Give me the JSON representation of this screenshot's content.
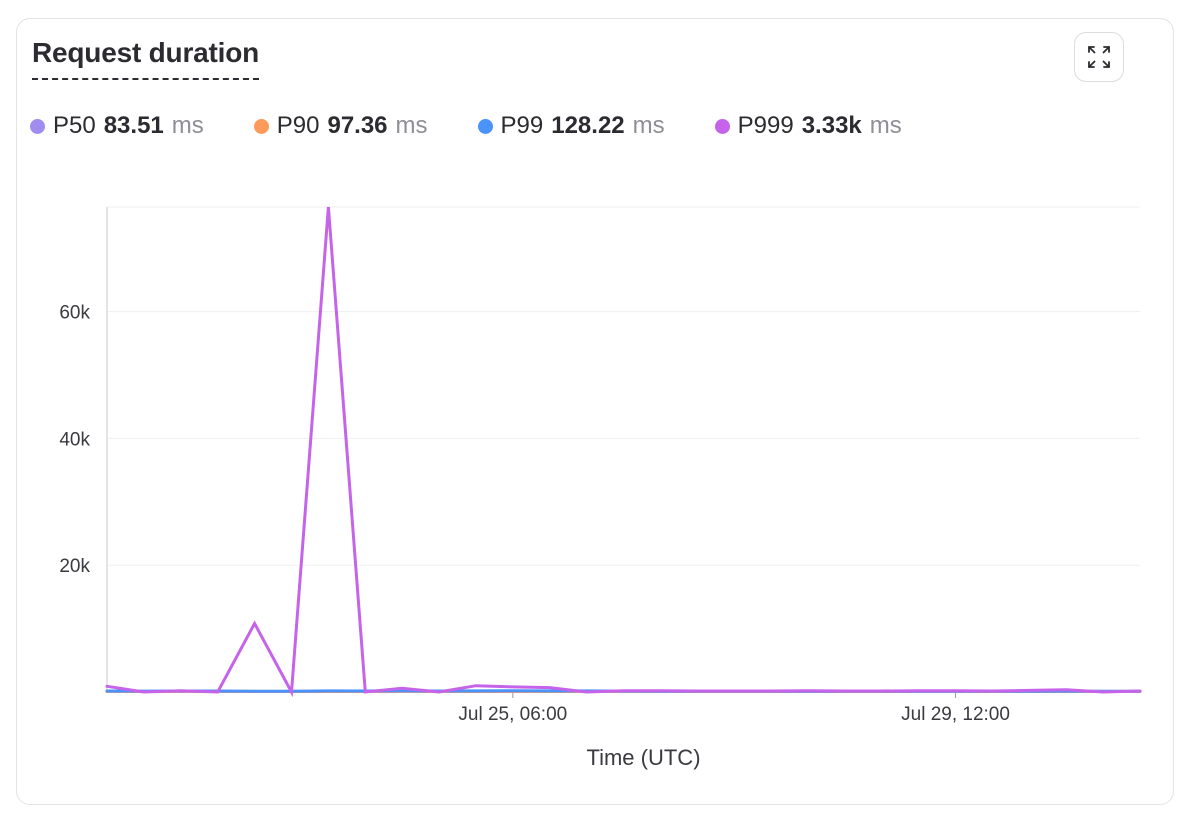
{
  "title": "Request duration",
  "expand_icon": "expand-icon",
  "legend": [
    {
      "name": "P50",
      "value": "83.51",
      "unit": "ms",
      "color": "#a18cf0"
    },
    {
      "name": "P90",
      "value": "97.36",
      "unit": "ms",
      "color": "#fb9a5a"
    },
    {
      "name": "P99",
      "value": "128.22",
      "unit": "ms",
      "color": "#4b93f8"
    },
    {
      "name": "P999",
      "value": "3.33k",
      "unit": "ms",
      "color": "#c564ea"
    }
  ],
  "chart_data": {
    "type": "line",
    "xlabel": "Time (UTC)",
    "ylabel": "",
    "ylim": [
      0,
      76500
    ],
    "yticks": [
      20000,
      40000,
      60000
    ],
    "ytick_labels": [
      "20k",
      "40k",
      "60k"
    ],
    "x": [
      0,
      1,
      2,
      3,
      4,
      5,
      6,
      7,
      8,
      9,
      10,
      11,
      12,
      13,
      14,
      15,
      16,
      17,
      18,
      19,
      20,
      21,
      22,
      23,
      24,
      25,
      26,
      27,
      28
    ],
    "xticks": [
      {
        "x": 11,
        "label": "Jul 25, 06:00"
      },
      {
        "x": 23,
        "label": "Jul 29, 12:00"
      }
    ],
    "grid": true,
    "legend_position": "top",
    "series": [
      {
        "name": "P50",
        "color": "#a18cf0",
        "values": [
          80,
          80,
          85,
          80,
          85,
          80,
          85,
          85,
          90,
          85,
          85,
          85,
          85,
          85,
          85,
          80,
          80,
          80,
          80,
          80,
          80,
          80,
          80,
          80,
          80,
          80,
          85,
          80,
          80
        ]
      },
      {
        "name": "P90",
        "color": "#fb9a5a",
        "values": [
          95,
          95,
          100,
          95,
          100,
          95,
          100,
          100,
          110,
          100,
          100,
          100,
          100,
          100,
          100,
          95,
          95,
          95,
          95,
          95,
          95,
          95,
          95,
          95,
          95,
          95,
          100,
          95,
          95
        ]
      },
      {
        "name": "P99",
        "color": "#4b93f8",
        "values": [
          150,
          140,
          160,
          150,
          130,
          120,
          180,
          150,
          200,
          160,
          180,
          200,
          180,
          170,
          140,
          130,
          130,
          130,
          130,
          130,
          130,
          130,
          130,
          130,
          130,
          130,
          140,
          130,
          130
        ]
      },
      {
        "name": "P999",
        "color": "#c564ea",
        "values": [
          900,
          0,
          200,
          0,
          10800,
          0,
          76500,
          0,
          600,
          0,
          1000,
          800,
          700,
          0,
          200,
          200,
          150,
          150,
          150,
          200,
          150,
          150,
          200,
          200,
          150,
          250,
          350,
          0,
          150
        ]
      }
    ]
  }
}
